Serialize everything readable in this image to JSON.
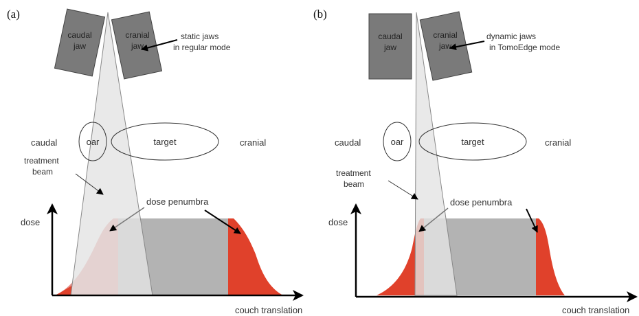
{
  "panel_a": {
    "label": "(a)",
    "caudal_jaw": [
      "caudal",
      "jaw"
    ],
    "cranial_jaw": [
      "cranial",
      "jaw"
    ],
    "jaw_annotation": [
      "static jaws",
      "in regular mode"
    ],
    "caudal": "caudal",
    "oar": "oar",
    "target": "target",
    "cranial": "cranial",
    "treatment_beam": [
      "treatment",
      "beam"
    ],
    "dose_penumbra": "dose penumbra",
    "dose": "dose",
    "couch_translation": "couch translation"
  },
  "panel_b": {
    "label": "(b)",
    "caudal_jaw": [
      "caudal",
      "jaw"
    ],
    "cranial_jaw": [
      "cranial",
      "jaw"
    ],
    "jaw_annotation": [
      "dynamic jaws",
      "in TomoEdge mode"
    ],
    "caudal": "caudal",
    "oar": "oar",
    "target": "target",
    "cranial": "cranial",
    "treatment_beam": [
      "treatment",
      "beam"
    ],
    "dose_penumbra": "dose penumbra",
    "dose": "dose",
    "couch_translation": "couch translation"
  },
  "colors": {
    "jaw": "#7a7a7a",
    "beam": "#e4e4e4",
    "dose_plateau": "#b3b3b3",
    "penumbra_red": "#e0412b",
    "penumbra_faded": "#e68d86",
    "axis": "#000000"
  }
}
